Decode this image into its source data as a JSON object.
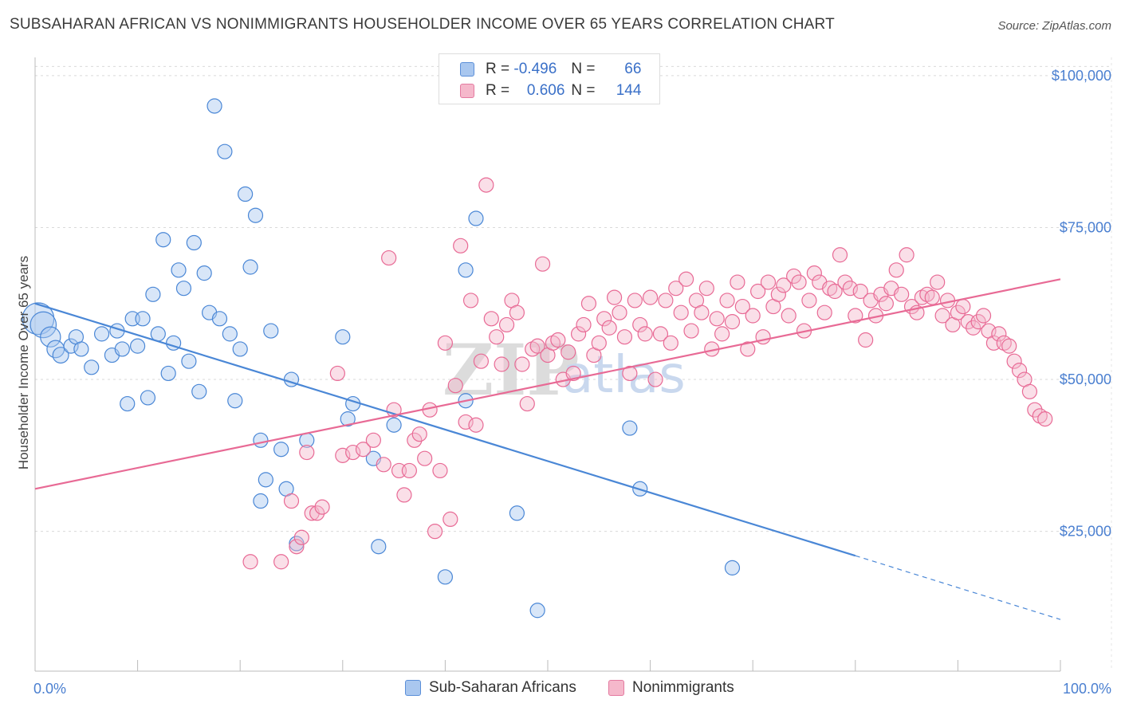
{
  "header": {
    "title": "SUBSAHARAN AFRICAN VS NONIMMIGRANTS HOUSEHOLDER INCOME OVER 65 YEARS CORRELATION CHART",
    "source": "Source: ZipAtlas.com"
  },
  "watermark": {
    "zip": "ZIP",
    "atlas": "atlas"
  },
  "legend": {
    "rows": [
      {
        "r_label": "R =",
        "r_value": "-0.496",
        "n_label": "N =",
        "n_value": "66",
        "color": "#a9c7ef"
      },
      {
        "r_label": "R =",
        "r_value": "0.606",
        "n_label": "N =",
        "n_value": "144",
        "color": "#f5b8cb"
      }
    ]
  },
  "bottom_legend": {
    "series1": "Sub-Saharan Africans",
    "series2": "Nonimmigrants"
  },
  "chart_data": {
    "type": "scatter",
    "ylabel": "Householder Income Over 65 years",
    "x_tick_labels": [
      "0.0%",
      "100.0%"
    ],
    "y_tick_labels": [
      "$25,000",
      "$50,000",
      "$75,000",
      "$100,000"
    ],
    "y_ticks": [
      25000,
      50000,
      75000,
      100000
    ],
    "xlim": [
      0,
      100
    ],
    "ylim": [
      2000,
      103000
    ],
    "grid": true,
    "colors": {
      "series1": "#4a87d6",
      "series2": "#e86a95",
      "fill1": "#a9c7ef",
      "fill2": "#f5b8cb"
    },
    "series": [
      {
        "name": "Sub-Saharan Africans",
        "trend": {
          "x0": 0,
          "y0": 62500,
          "x1": 80,
          "y1": 21000,
          "x_dash_end": 100,
          "y_dash_end": 10500
        },
        "points": [
          [
            0.3,
            60000,
            2.2
          ],
          [
            0.8,
            59000,
            1.8
          ],
          [
            1.5,
            57000,
            1.4
          ],
          [
            2.0,
            55000,
            1.2
          ],
          [
            2.5,
            54000,
            1.1
          ],
          [
            3.5,
            55500,
            1
          ],
          [
            4,
            57000,
            1
          ],
          [
            4.5,
            55000,
            1
          ],
          [
            5.5,
            52000,
            1
          ],
          [
            6.5,
            57500,
            1
          ],
          [
            7.5,
            54000,
            1
          ],
          [
            8,
            58000,
            1
          ],
          [
            8.5,
            55000,
            1
          ],
          [
            9,
            46000,
            1
          ],
          [
            9.5,
            60000,
            1
          ],
          [
            10,
            55500,
            1
          ],
          [
            10.5,
            60000,
            1
          ],
          [
            11,
            47000,
            1
          ],
          [
            11.5,
            64000,
            1
          ],
          [
            12,
            57500,
            1
          ],
          [
            12.5,
            73000,
            1
          ],
          [
            13,
            51000,
            1
          ],
          [
            13.5,
            56000,
            1
          ],
          [
            14,
            68000,
            1
          ],
          [
            14.5,
            65000,
            1
          ],
          [
            15,
            53000,
            1
          ],
          [
            15.5,
            72500,
            1
          ],
          [
            16,
            48000,
            1
          ],
          [
            16.5,
            67500,
            1
          ],
          [
            17,
            61000,
            1
          ],
          [
            17.5,
            95000,
            1
          ],
          [
            18,
            60000,
            1
          ],
          [
            18.5,
            87500,
            1
          ],
          [
            19,
            57500,
            1
          ],
          [
            19.5,
            46500,
            1
          ],
          [
            20,
            55000,
            1
          ],
          [
            20.5,
            80500,
            1
          ],
          [
            21.5,
            77000,
            1
          ],
          [
            21,
            68500,
            1
          ],
          [
            22,
            40000,
            1
          ],
          [
            22,
            30000,
            1
          ],
          [
            22.5,
            33500,
            1
          ],
          [
            23,
            58000,
            1
          ],
          [
            24,
            38500,
            1
          ],
          [
            24.5,
            32000,
            1
          ],
          [
            25,
            50000,
            1
          ],
          [
            25.5,
            23000,
            1
          ],
          [
            26.5,
            40000,
            1
          ],
          [
            30,
            57000,
            1
          ],
          [
            30.5,
            43500,
            1
          ],
          [
            31,
            46000,
            1
          ],
          [
            33,
            37000,
            1
          ],
          [
            33.5,
            22500,
            1
          ],
          [
            35,
            42500,
            1
          ],
          [
            40,
            17500,
            1
          ],
          [
            42,
            46500,
            1
          ],
          [
            42,
            68000,
            1
          ],
          [
            43,
            76500,
            1
          ],
          [
            47,
            28000,
            1
          ],
          [
            49,
            12000,
            1
          ],
          [
            58,
            42000,
            1
          ],
          [
            59,
            32000,
            1
          ],
          [
            68,
            19000,
            1
          ]
        ]
      },
      {
        "name": "Nonimmigrants",
        "trend": {
          "x0": 0,
          "y0": 32000,
          "x1": 100,
          "y1": 66500
        },
        "points": [
          [
            21,
            20000,
            1
          ],
          [
            24,
            20000,
            1
          ],
          [
            25,
            30000,
            1
          ],
          [
            25.5,
            22500,
            1
          ],
          [
            26,
            24000,
            1
          ],
          [
            26.5,
            38000,
            1
          ],
          [
            27,
            28000,
            1
          ],
          [
            27.5,
            28000,
            1
          ],
          [
            28,
            29000,
            1
          ],
          [
            29.5,
            51000,
            1
          ],
          [
            30,
            37500,
            1
          ],
          [
            31,
            38000,
            1
          ],
          [
            32,
            38500,
            1
          ],
          [
            33,
            40000,
            1
          ],
          [
            34,
            36000,
            1
          ],
          [
            34.5,
            70000,
            1
          ],
          [
            35,
            45000,
            1
          ],
          [
            35.5,
            35000,
            1
          ],
          [
            36,
            31000,
            1
          ],
          [
            36.5,
            35000,
            1
          ],
          [
            37,
            40000,
            1
          ],
          [
            37.5,
            41000,
            1
          ],
          [
            38,
            37000,
            1
          ],
          [
            38.5,
            45000,
            1
          ],
          [
            39,
            25000,
            1
          ],
          [
            39.5,
            35000,
            1
          ],
          [
            40,
            56000,
            1
          ],
          [
            40.5,
            27000,
            1
          ],
          [
            41,
            49000,
            1
          ],
          [
            41.5,
            72000,
            1
          ],
          [
            42,
            43000,
            1
          ],
          [
            42.5,
            63000,
            1
          ],
          [
            43,
            42500,
            1
          ],
          [
            43.5,
            53000,
            1
          ],
          [
            44,
            82000,
            1
          ],
          [
            44.5,
            60000,
            1
          ],
          [
            45,
            57000,
            1
          ],
          [
            45.5,
            52500,
            1
          ],
          [
            46,
            59000,
            1
          ],
          [
            46.5,
            63000,
            1
          ],
          [
            47,
            61000,
            1
          ],
          [
            47.5,
            52500,
            1
          ],
          [
            48,
            46000,
            1
          ],
          [
            48.5,
            55000,
            1
          ],
          [
            49,
            55500,
            1
          ],
          [
            49.5,
            69000,
            1
          ],
          [
            50,
            54000,
            1
          ],
          [
            50.5,
            56000,
            1
          ],
          [
            51,
            56500,
            1
          ],
          [
            51.5,
            50000,
            1
          ],
          [
            52,
            54500,
            1
          ],
          [
            52.5,
            51000,
            1
          ],
          [
            53,
            57500,
            1
          ],
          [
            53.5,
            59000,
            1
          ],
          [
            54,
            62500,
            1
          ],
          [
            54.5,
            54000,
            1
          ],
          [
            55,
            56000,
            1
          ],
          [
            55.5,
            60000,
            1
          ],
          [
            56,
            58500,
            1
          ],
          [
            56.5,
            63500,
            1
          ],
          [
            57,
            61000,
            1
          ],
          [
            57.5,
            57000,
            1
          ],
          [
            58,
            51000,
            1
          ],
          [
            58.5,
            63000,
            1
          ],
          [
            59,
            59000,
            1
          ],
          [
            59.5,
            57500,
            1
          ],
          [
            60,
            63500,
            1
          ],
          [
            60.5,
            50000,
            1
          ],
          [
            61,
            57500,
            1
          ],
          [
            61.5,
            63000,
            1
          ],
          [
            62,
            56000,
            1
          ],
          [
            62.5,
            65000,
            1
          ],
          [
            63,
            61000,
            1
          ],
          [
            63.5,
            66500,
            1
          ],
          [
            64,
            58000,
            1
          ],
          [
            64.5,
            63000,
            1
          ],
          [
            65,
            61000,
            1
          ],
          [
            65.5,
            65000,
            1
          ],
          [
            66,
            55000,
            1
          ],
          [
            66.5,
            60000,
            1
          ],
          [
            67,
            57500,
            1
          ],
          [
            67.5,
            63000,
            1
          ],
          [
            68,
            59500,
            1
          ],
          [
            68.5,
            66000,
            1
          ],
          [
            69,
            62000,
            1
          ],
          [
            69.5,
            55000,
            1
          ],
          [
            70,
            60500,
            1
          ],
          [
            70.5,
            64500,
            1
          ],
          [
            71,
            57000,
            1
          ],
          [
            71.5,
            66000,
            1
          ],
          [
            72,
            62000,
            1
          ],
          [
            72.5,
            64000,
            1
          ],
          [
            73,
            65500,
            1
          ],
          [
            73.5,
            60500,
            1
          ],
          [
            74,
            67000,
            1
          ],
          [
            74.5,
            66000,
            1
          ],
          [
            75,
            58000,
            1
          ],
          [
            75.5,
            63000,
            1
          ],
          [
            76,
            67500,
            1
          ],
          [
            76.5,
            66000,
            1
          ],
          [
            77,
            61000,
            1
          ],
          [
            77.5,
            65000,
            1
          ],
          [
            78,
            64500,
            1
          ],
          [
            78.5,
            70500,
            1
          ],
          [
            79,
            66000,
            1
          ],
          [
            79.5,
            65000,
            1
          ],
          [
            80,
            60500,
            1
          ],
          [
            80.5,
            64500,
            1
          ],
          [
            81,
            56500,
            1
          ],
          [
            81.5,
            63000,
            1
          ],
          [
            82,
            60500,
            1
          ],
          [
            82.5,
            64000,
            1
          ],
          [
            83,
            62500,
            1
          ],
          [
            83.5,
            65000,
            1
          ],
          [
            84,
            68000,
            1
          ],
          [
            84.5,
            64000,
            1
          ],
          [
            85,
            70500,
            1
          ],
          [
            85.5,
            62000,
            1
          ],
          [
            86,
            61000,
            1
          ],
          [
            86.5,
            63500,
            1
          ],
          [
            87,
            64000,
            1
          ],
          [
            87.5,
            63500,
            1
          ],
          [
            88,
            66000,
            1
          ],
          [
            88.5,
            60500,
            1
          ],
          [
            89,
            63000,
            1
          ],
          [
            89.5,
            59000,
            1
          ],
          [
            90,
            61000,
            1
          ],
          [
            90.5,
            62000,
            1
          ],
          [
            91,
            59500,
            1
          ],
          [
            91.5,
            58500,
            1
          ],
          [
            92,
            59500,
            1
          ],
          [
            92.5,
            60500,
            1
          ],
          [
            93,
            58000,
            1
          ],
          [
            93.5,
            56000,
            1
          ],
          [
            94,
            57500,
            1
          ],
          [
            94.5,
            56000,
            1
          ],
          [
            95,
            55500,
            1
          ],
          [
            95.5,
            53000,
            1
          ],
          [
            96,
            51500,
            1
          ],
          [
            96.5,
            50000,
            1
          ],
          [
            97,
            48000,
            1
          ],
          [
            97.5,
            45000,
            1
          ],
          [
            98,
            44000,
            1
          ],
          [
            98.5,
            43500,
            1
          ]
        ]
      }
    ]
  }
}
